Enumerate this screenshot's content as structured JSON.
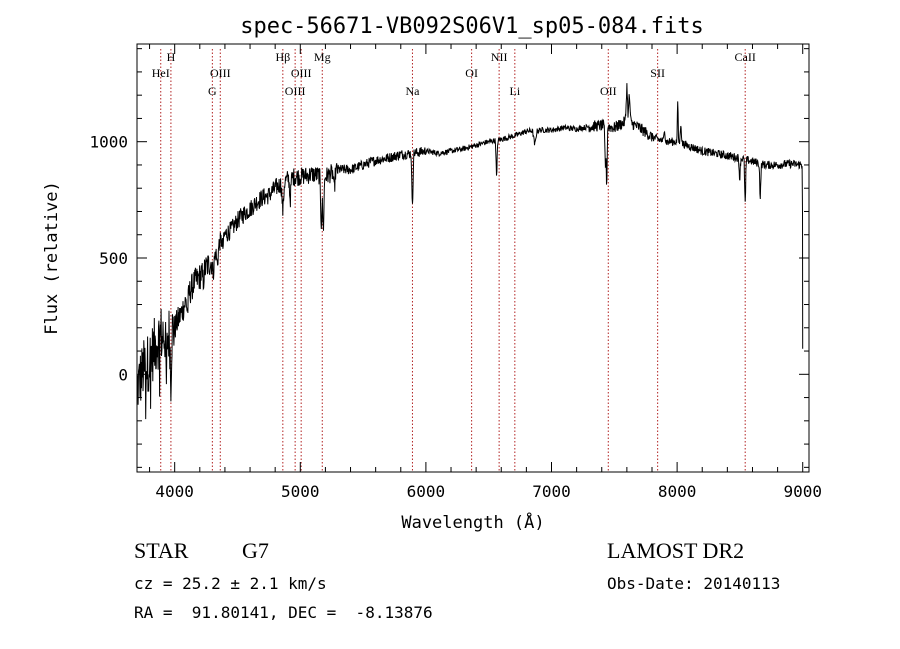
{
  "chart_data": {
    "type": "line",
    "title": "spec-56671-VB092S06V1_sp05-084.fits",
    "xlabel": "Wavelength (Å)",
    "ylabel": "Flux (relative)",
    "xlim": [
      3700,
      9050
    ],
    "ylim": [
      -420,
      1420
    ],
    "x_ticks": [
      4000,
      5000,
      6000,
      7000,
      8000,
      9000
    ],
    "x_tick_labels": [
      "4000",
      "5000",
      "6000",
      "7000",
      "8000",
      "9000"
    ],
    "y_ticks": [
      0,
      500,
      1000
    ],
    "y_tick_labels": [
      "0",
      "500",
      "1000"
    ],
    "grid": false,
    "legend": "none",
    "spectrum_color": "#000000",
    "line_marker_color": "#b22222",
    "spectrum_anchors": [
      [
        3700,
        -60
      ],
      [
        3750,
        20
      ],
      [
        3800,
        60
      ],
      [
        3850,
        130
      ],
      [
        3900,
        180
      ],
      [
        3950,
        170
      ],
      [
        4000,
        200
      ],
      [
        4050,
        260
      ],
      [
        4100,
        330
      ],
      [
        4150,
        390
      ],
      [
        4200,
        420
      ],
      [
        4250,
        460
      ],
      [
        4300,
        490
      ],
      [
        4350,
        560
      ],
      [
        4400,
        600
      ],
      [
        4450,
        620
      ],
      [
        4500,
        660
      ],
      [
        4550,
        690
      ],
      [
        4600,
        710
      ],
      [
        4650,
        740
      ],
      [
        4700,
        760
      ],
      [
        4750,
        770
      ],
      [
        4800,
        800
      ],
      [
        4850,
        820
      ],
      [
        4900,
        840
      ],
      [
        4950,
        850
      ],
      [
        5000,
        850
      ],
      [
        5100,
        860
      ],
      [
        5200,
        850
      ],
      [
        5300,
        880
      ],
      [
        5400,
        880
      ],
      [
        5500,
        900
      ],
      [
        5600,
        920
      ],
      [
        5700,
        930
      ],
      [
        5800,
        945
      ],
      [
        5900,
        950
      ],
      [
        6000,
        960
      ],
      [
        6100,
        950
      ],
      [
        6200,
        960
      ],
      [
        6300,
        970
      ],
      [
        6400,
        985
      ],
      [
        6500,
        1000
      ],
      [
        6600,
        1010
      ],
      [
        6700,
        1025
      ],
      [
        6800,
        1045
      ],
      [
        6900,
        1050
      ],
      [
        7000,
        1050
      ],
      [
        7100,
        1060
      ],
      [
        7200,
        1055
      ],
      [
        7300,
        1065
      ],
      [
        7400,
        1070
      ],
      [
        7500,
        1060
      ],
      [
        7600,
        1090
      ],
      [
        7700,
        1060
      ],
      [
        7800,
        1020
      ],
      [
        7900,
        1000
      ],
      [
        8000,
        1000
      ],
      [
        8100,
        980
      ],
      [
        8200,
        960
      ],
      [
        8300,
        950
      ],
      [
        8400,
        940
      ],
      [
        8500,
        930
      ],
      [
        8600,
        915
      ],
      [
        8700,
        900
      ],
      [
        8800,
        900
      ],
      [
        8900,
        905
      ],
      [
        8995,
        900
      ]
    ],
    "absorption_dips": [
      [
        3934,
        220,
        4
      ],
      [
        3969,
        200,
        4
      ],
      [
        4102,
        60,
        5
      ],
      [
        4227,
        40,
        5
      ],
      [
        4308,
        60,
        6
      ],
      [
        4340,
        70,
        6
      ],
      [
        4384,
        40,
        5
      ],
      [
        4861,
        120,
        6
      ],
      [
        4920,
        90,
        5
      ],
      [
        5167,
        200,
        5
      ],
      [
        5183,
        230,
        5
      ],
      [
        5270,
        80,
        5
      ],
      [
        5890,
        190,
        3
      ],
      [
        5896,
        150,
        3
      ],
      [
        6563,
        160,
        4
      ],
      [
        6867,
        60,
        8
      ],
      [
        7430,
        170,
        5
      ],
      [
        7440,
        230,
        3
      ],
      [
        8498,
        90,
        4
      ],
      [
        8542,
        190,
        4
      ],
      [
        8662,
        150,
        4
      ]
    ],
    "emission_spikes": [
      [
        7600,
        150,
        5
      ],
      [
        7620,
        110,
        5
      ],
      [
        7900,
        60,
        4
      ],
      [
        8005,
        180,
        3
      ],
      [
        8030,
        90,
        4
      ]
    ],
    "spectral_lines": [
      {
        "wavelength": 3889,
        "label": "HeI",
        "row": 2
      },
      {
        "wavelength": 3970,
        "label": "H",
        "row": 1
      },
      {
        "wavelength": 4300,
        "label": "G",
        "row": 3
      },
      {
        "wavelength": 4363,
        "label": "OIII",
        "row": 2
      },
      {
        "wavelength": 4861,
        "label": "Hβ",
        "row": 1
      },
      {
        "wavelength": 4959,
        "label": "OIII",
        "row": 3
      },
      {
        "wavelength": 5007,
        "label": "OIII",
        "row": 2
      },
      {
        "wavelength": 5175,
        "label": "Mg",
        "row": 1
      },
      {
        "wavelength": 5893,
        "label": "Na",
        "row": 3
      },
      {
        "wavelength": 6364,
        "label": "OI",
        "row": 2
      },
      {
        "wavelength": 6583,
        "label": "NII",
        "row": 1
      },
      {
        "wavelength": 6708,
        "label": "Li",
        "row": 3
      },
      {
        "wavelength": 7452,
        "label": "OII",
        "row": 3
      },
      {
        "wavelength": 7845,
        "label": "SII",
        "row": 2
      },
      {
        "wavelength": 8542,
        "label": "CaII",
        "row": 1
      }
    ]
  },
  "info": {
    "object_class": "STAR",
    "subclass": "G7",
    "survey": "LAMOST DR2",
    "cz_text": "cz = 25.2 ± 2.1 km/s",
    "obs_date_text": "Obs-Date: 20140113",
    "radec_text": "RA =  91.80141, DEC =  -8.13876"
  }
}
